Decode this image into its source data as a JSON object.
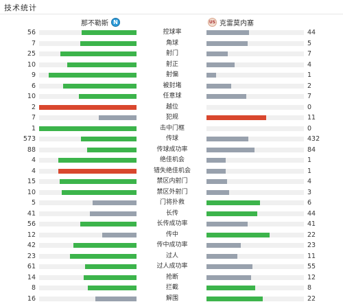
{
  "header": {
    "title": "技术统计"
  },
  "teams": {
    "home": {
      "name": "那不勒斯",
      "badge_icon": "napoli-badge-icon",
      "badge_glyph": "N"
    },
    "away": {
      "name": "克雷莫内塞",
      "badge_icon": "cremonese-badge-icon",
      "badge_glyph": "US"
    }
  },
  "colors": {
    "win": "#3cb44b",
    "lose": "#98a1ad",
    "red": "#d9472e",
    "track": "#f0f0f0"
  },
  "stats": [
    {
      "label": "控球率",
      "home": "56",
      "away": "44",
      "hf": 0.56,
      "af": 0.44,
      "hc": "win",
      "ac": "lose"
    },
    {
      "label": "角球",
      "home": "7",
      "away": "5",
      "hf": 0.58,
      "af": 0.42,
      "hc": "win",
      "ac": "lose"
    },
    {
      "label": "射门",
      "home": "25",
      "away": "7",
      "hf": 0.78,
      "af": 0.22,
      "hc": "win",
      "ac": "lose"
    },
    {
      "label": "射正",
      "home": "10",
      "away": "4",
      "hf": 0.71,
      "af": 0.29,
      "hc": "win",
      "ac": "lose"
    },
    {
      "label": "射偏",
      "home": "9",
      "away": "1",
      "hf": 0.9,
      "af": 0.1,
      "hc": "win",
      "ac": "lose"
    },
    {
      "label": "被封堵",
      "home": "6",
      "away": "2",
      "hf": 0.75,
      "af": 0.25,
      "hc": "win",
      "ac": "lose"
    },
    {
      "label": "任意球",
      "home": "10",
      "away": "7",
      "hf": 0.59,
      "af": 0.41,
      "hc": "win",
      "ac": "lose"
    },
    {
      "label": "越位",
      "home": "2",
      "away": "0",
      "hf": 1.0,
      "af": 0.0,
      "hc": "red",
      "ac": "lose"
    },
    {
      "label": "犯规",
      "home": "7",
      "away": "11",
      "hf": 0.39,
      "af": 0.61,
      "hc": "lose",
      "ac": "red"
    },
    {
      "label": "击中门框",
      "home": "1",
      "away": "0",
      "hf": 1.0,
      "af": 0.0,
      "hc": "win",
      "ac": "lose"
    },
    {
      "label": "传球",
      "home": "573",
      "away": "432",
      "hf": 0.57,
      "af": 0.43,
      "hc": "win",
      "ac": "lose"
    },
    {
      "label": "传球成功率",
      "home": "88",
      "away": "84",
      "hf": 0.51,
      "af": 0.49,
      "hc": "win",
      "ac": "lose"
    },
    {
      "label": "绝佳机会",
      "home": "4",
      "away": "1",
      "hf": 0.8,
      "af": 0.2,
      "hc": "win",
      "ac": "lose"
    },
    {
      "label": "错失绝佳机会",
      "home": "4",
      "away": "1",
      "hf": 0.8,
      "af": 0.2,
      "hc": "red",
      "ac": "lose"
    },
    {
      "label": "禁区内射门",
      "home": "15",
      "away": "4",
      "hf": 0.79,
      "af": 0.21,
      "hc": "win",
      "ac": "lose"
    },
    {
      "label": "禁区外射门",
      "home": "10",
      "away": "3",
      "hf": 0.77,
      "af": 0.23,
      "hc": "win",
      "ac": "lose"
    },
    {
      "label": "门将扑救",
      "home": "5",
      "away": "6",
      "hf": 0.45,
      "af": 0.55,
      "hc": "lose",
      "ac": "win"
    },
    {
      "label": "长传",
      "home": "41",
      "away": "44",
      "hf": 0.48,
      "af": 0.52,
      "hc": "lose",
      "ac": "win"
    },
    {
      "label": "长传成功率",
      "home": "56",
      "away": "41",
      "hf": 0.58,
      "af": 0.42,
      "hc": "win",
      "ac": "lose"
    },
    {
      "label": "传中",
      "home": "12",
      "away": "22",
      "hf": 0.35,
      "af": 0.65,
      "hc": "lose",
      "ac": "win"
    },
    {
      "label": "传中成功率",
      "home": "42",
      "away": "23",
      "hf": 0.65,
      "af": 0.35,
      "hc": "win",
      "ac": "lose"
    },
    {
      "label": "过人",
      "home": "23",
      "away": "11",
      "hf": 0.68,
      "af": 0.32,
      "hc": "win",
      "ac": "lose"
    },
    {
      "label": "过人成功率",
      "home": "61",
      "away": "55",
      "hf": 0.53,
      "af": 0.47,
      "hc": "win",
      "ac": "lose"
    },
    {
      "label": "抢断",
      "home": "14",
      "away": "12",
      "hf": 0.54,
      "af": 0.46,
      "hc": "win",
      "ac": "lose"
    },
    {
      "label": "拦截",
      "home": "8",
      "away": "8",
      "hf": 0.5,
      "af": 0.5,
      "hc": "win",
      "ac": "win"
    },
    {
      "label": "解围",
      "home": "16",
      "away": "22",
      "hf": 0.42,
      "af": 0.58,
      "hc": "lose",
      "ac": "win"
    }
  ]
}
